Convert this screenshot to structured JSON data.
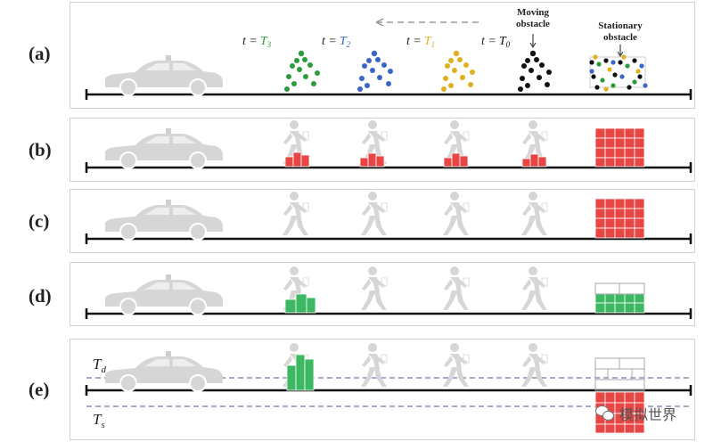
{
  "rows": [
    {
      "label": "(a)"
    },
    {
      "label": "(b)"
    },
    {
      "label": "(c)"
    },
    {
      "label": "(d)"
    },
    {
      "label": "(e)"
    }
  ],
  "panel_a": {
    "time_labels": [
      {
        "prefix": "t =",
        "sym": "T",
        "sub": "3",
        "color": "#2a9d3a"
      },
      {
        "prefix": "t =",
        "sym": "T",
        "sub": "2",
        "color": "#3a66c8"
      },
      {
        "prefix": "t =",
        "sym": "T",
        "sub": "1",
        "color": "#e0b020"
      },
      {
        "prefix": "t =",
        "sym": "T",
        "sub": "0",
        "color": "#111111"
      }
    ],
    "moving_obstacle_line1": "Moving",
    "moving_obstacle_line2": "obstacle",
    "stationary_obstacle_line1": "Stationary",
    "stationary_obstacle_line2": "obstacle"
  },
  "panel_e": {
    "upper_threshold_sym": "T",
    "upper_threshold_sub": "d",
    "lower_threshold_sym": "T",
    "lower_threshold_sub": "s"
  },
  "watermark": {
    "text": "模拟世界",
    "icon": "wechat-icon"
  },
  "colors": {
    "occupied": "#e84545",
    "free": "#3cb862",
    "silhouette": "#d6d6d6",
    "threshold_line": "#8090b8"
  }
}
